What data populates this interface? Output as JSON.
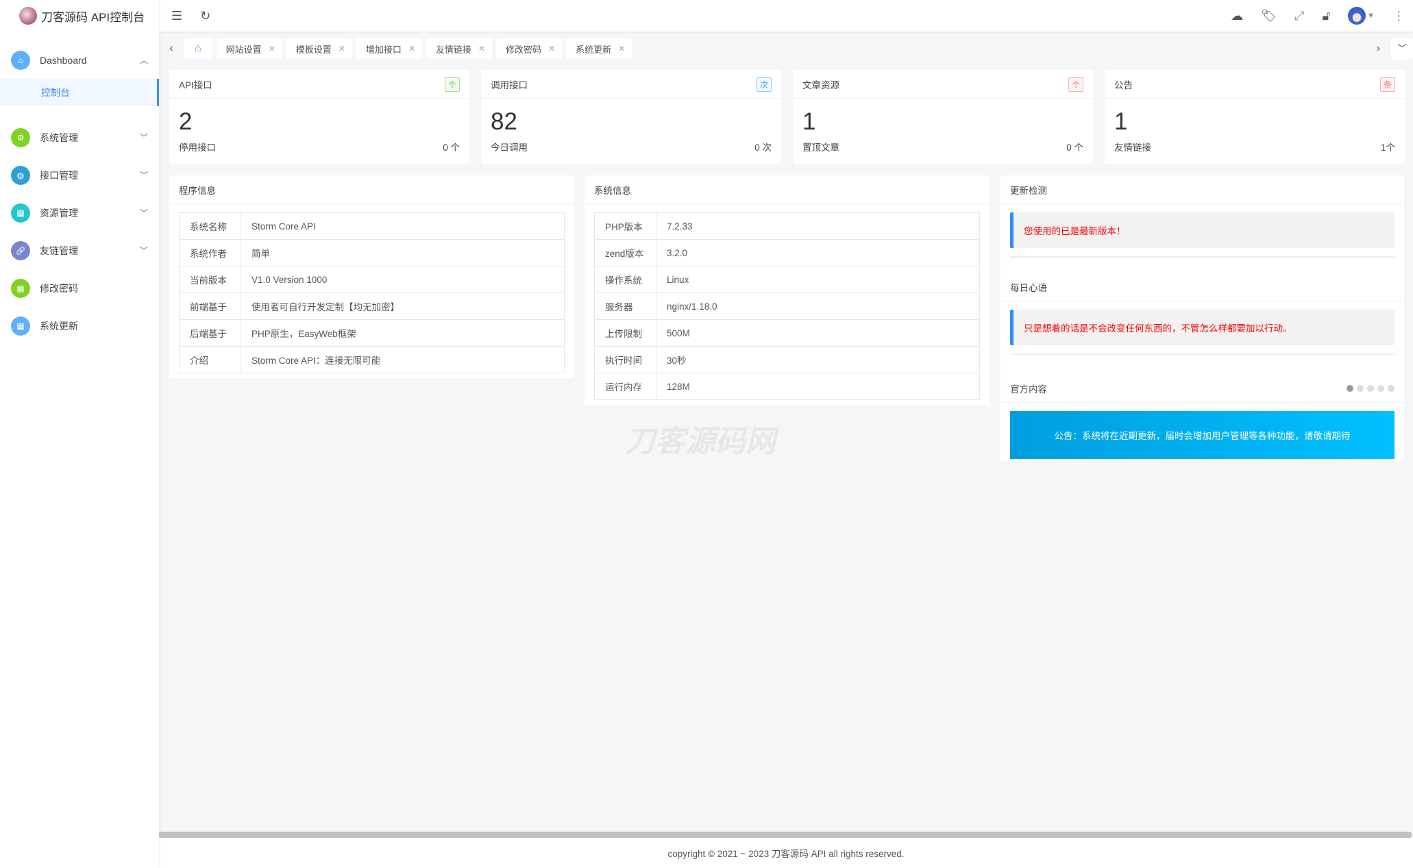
{
  "app": {
    "title": "刀客源码 API控制台"
  },
  "sidebar": {
    "items": [
      {
        "label": "Dashboard",
        "icon": "home-icon",
        "color": "#5fb0fb",
        "expanded": true,
        "children": [
          {
            "label": "控制台",
            "active": true
          }
        ]
      },
      {
        "label": "系统管理",
        "icon": "gear-icon",
        "color": "#7ed321",
        "expandable": true
      },
      {
        "label": "接口管理",
        "icon": "globe-icon",
        "color": "#2e9fd6",
        "expandable": true
      },
      {
        "label": "资源管理",
        "icon": "grid-icon",
        "color": "#26c6cf",
        "expandable": true
      },
      {
        "label": "友链管理",
        "icon": "link-icon",
        "color": "#7986cb",
        "expandable": true
      },
      {
        "label": "修改密码",
        "icon": "grid-icon",
        "color": "#7ed321"
      },
      {
        "label": "系统更新",
        "icon": "grid-icon",
        "color": "#5fb0fb"
      }
    ]
  },
  "header": {
    "icons": [
      "menu-fold-icon",
      "refresh-icon",
      "cloud-code-icon",
      "tag-icon",
      "fullscreen-icon",
      "lock-icon",
      "avatar",
      "more-icon"
    ]
  },
  "tabs": [
    {
      "label": "网站设置"
    },
    {
      "label": "模板设置"
    },
    {
      "label": "增加接口"
    },
    {
      "label": "友情链接"
    },
    {
      "label": "修改密码"
    },
    {
      "label": "系统更新"
    }
  ],
  "stats": [
    {
      "title": "API接口",
      "badge": "个",
      "badge_color": "#67c23a",
      "value": "2",
      "sub_label": "停用接口",
      "sub_value": "0 个"
    },
    {
      "title": "调用接口",
      "badge": "次",
      "badge_color": "#409eff",
      "value": "82",
      "sub_label": "今日调用",
      "sub_value": "0 次"
    },
    {
      "title": "文章资源",
      "badge": "个",
      "badge_color": "#f56c6c",
      "value": "1",
      "sub_label": "置顶文章",
      "sub_value": "0 个"
    },
    {
      "title": "公告",
      "badge": "条",
      "badge_color": "#f56c6c",
      "value": "1",
      "sub_label": "友情链接",
      "sub_value": "1个"
    }
  ],
  "program_info": {
    "title": "程序信息",
    "rows": [
      {
        "k": "系统名称",
        "v": "Storm Core API"
      },
      {
        "k": "系统作者",
        "v": "简单"
      },
      {
        "k": "当前版本",
        "v": "V1.0 Version 1000"
      },
      {
        "k": "前端基于",
        "v": "使用者可自行开发定制【均无加密】"
      },
      {
        "k": "后端基于",
        "v": "PHP原生，EasyWeb框架"
      },
      {
        "k": "介绍",
        "v": "Storm Core API：连接无限可能"
      }
    ]
  },
  "system_info": {
    "title": "系统信息",
    "rows": [
      {
        "k": "PHP版本",
        "v": "7.2.33"
      },
      {
        "k": "zend版本",
        "v": "3.2.0"
      },
      {
        "k": "操作系统",
        "v": "Linux"
      },
      {
        "k": "服务器",
        "v": "nginx/1.18.0"
      },
      {
        "k": "上传限制",
        "v": "500M"
      },
      {
        "k": "执行时间",
        "v": "30秒"
      },
      {
        "k": "运行内存",
        "v": "128M"
      }
    ]
  },
  "update": {
    "title": "更新检测",
    "message": "您使用的已是最新版本！"
  },
  "daily": {
    "title": "每日心语",
    "message": "只是想着的话是不会改变任何东西的，不管怎么样都要加以行动。"
  },
  "official": {
    "title": "官方内容",
    "carousel_pages": 5,
    "carousel_active": 1,
    "banner": "公告：系统将在近期更新，届时会增加用户管理等各种功能，请敬请期待"
  },
  "watermark": "刀客源码网",
  "footer": "copyright © 2021 ~ 2023 刀客源码 API all rights reserved."
}
